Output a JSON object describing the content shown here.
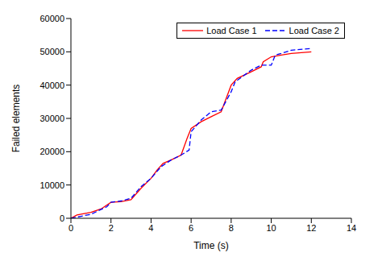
{
  "chart_data": {
    "type": "line",
    "x_label": "Time (s)",
    "y_label": "Failed elements",
    "xlim": [
      0,
      14
    ],
    "xticks": [
      0,
      2,
      4,
      6,
      8,
      10,
      12,
      14
    ],
    "ylim": [
      0,
      60000
    ],
    "yticks": [
      0,
      10000,
      20000,
      30000,
      40000,
      50000,
      60000
    ],
    "grid": false,
    "legend": "top right",
    "series": [
      {
        "name": "Load Case 1",
        "color": "#ff0000",
        "line_style": "solid",
        "x": [
          0,
          0.3,
          1,
          1.5,
          2,
          2.5,
          3,
          3.5,
          4,
          4.3,
          4.6,
          5,
          5.5,
          5.8,
          6,
          6.5,
          7,
          7.5,
          8,
          8.3,
          9,
          9.5,
          9.6,
          10,
          10.5,
          11,
          12
        ],
        "values": [
          0,
          1000,
          1800,
          2800,
          4800,
          5000,
          5600,
          9000,
          12000,
          14500,
          16500,
          17500,
          19000,
          24000,
          27000,
          29000,
          30500,
          32000,
          40000,
          42000,
          44000,
          45500,
          47000,
          48500,
          49000,
          49500,
          50000
        ]
      },
      {
        "name": "Load Case 2",
        "color": "#0000ff",
        "line_style": "dashed",
        "x": [
          0,
          0.5,
          1,
          1.8,
          2,
          2.5,
          3,
          3.5,
          4,
          4.5,
          5,
          5.5,
          5.9,
          6,
          6.5,
          7,
          7.5,
          8,
          8.2,
          9,
          9.5,
          10,
          10.2,
          10.5,
          11,
          12
        ],
        "values": [
          0,
          600,
          1200,
          3500,
          4800,
          5200,
          6000,
          9500,
          12000,
          15500,
          17500,
          19000,
          20500,
          26000,
          29500,
          32000,
          32500,
          38000,
          41000,
          44500,
          46000,
          46000,
          49000,
          49500,
          50500,
          51000
        ]
      }
    ]
  }
}
